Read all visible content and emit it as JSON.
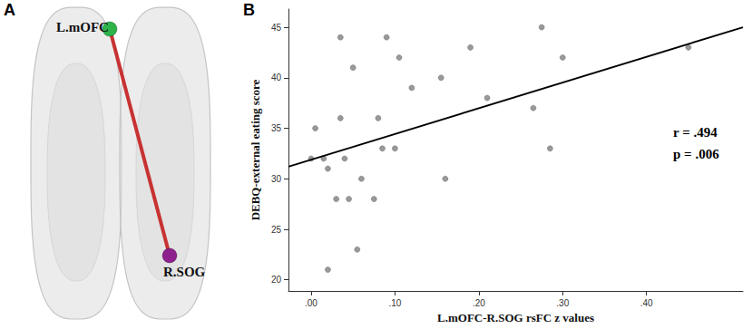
{
  "chart_data": [
    {
      "type": "diagram",
      "title": "A",
      "nodes": [
        {
          "label": "L.mOFC",
          "color": "#2db34a"
        },
        {
          "label": "R.SOG",
          "color": "#8e1f8e"
        }
      ],
      "edges": [
        {
          "source": 0,
          "target": 1,
          "color": "#c83232"
        }
      ]
    },
    {
      "type": "scatter",
      "title": "B",
      "xlabel": "L.mOFC-R.SOG rsFC z values",
      "ylabel": "DEBQ-external eating score",
      "x": [
        0.0,
        0.005,
        0.015,
        0.02,
        0.02,
        0.03,
        0.035,
        0.035,
        0.04,
        0.045,
        0.05,
        0.055,
        0.06,
        0.075,
        0.08,
        0.085,
        0.09,
        0.1,
        0.105,
        0.12,
        0.155,
        0.16,
        0.19,
        0.21,
        0.265,
        0.275,
        0.285,
        0.3,
        0.45
      ],
      "values": [
        32,
        35,
        32,
        31,
        21,
        28,
        36,
        44,
        32,
        28,
        41,
        23,
        30,
        28,
        36,
        33,
        44,
        33,
        42,
        39,
        40,
        30,
        43,
        38,
        37,
        45,
        33,
        42,
        43
      ],
      "color": "#7f7f7f",
      "fit_line": {
        "x": [
          -0.027,
          0.515
        ],
        "values": [
          31.2,
          45.0
        ],
        "color": "#000000"
      },
      "annotations": [
        "r = .494",
        "p = .006"
      ],
      "xlim": [
        -0.027,
        0.515
      ],
      "xticks": [
        {
          "value": 0,
          "label": ".00"
        },
        {
          "value": 0.1,
          "label": ".10"
        },
        {
          "value": 0.2,
          "label": ".20"
        },
        {
          "value": 0.3,
          "label": ".30"
        },
        {
          "value": 0.4,
          "label": ".40"
        }
      ],
      "ylim": [
        18.9,
        46.8
      ],
      "yticks": [
        20,
        25,
        30,
        35,
        40,
        45
      ],
      "grid": false
    }
  ]
}
